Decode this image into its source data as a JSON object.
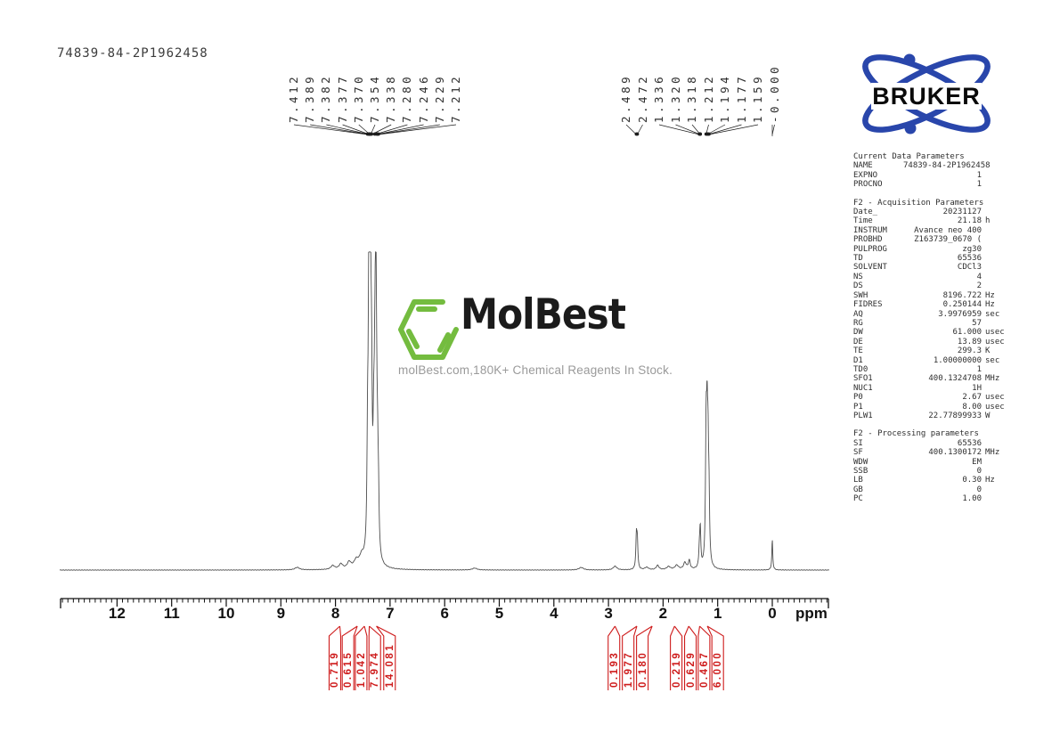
{
  "sample_id": "74839-84-2P1962458",
  "bruker_logo": {
    "text": "BRUKER",
    "ellipse_color": "#2946ab",
    "text_color": "#0a0a0a"
  },
  "watermark": {
    "brand": "MolBest",
    "tagline": "molBest.com,180K+ Chemical Reagents In Stock.",
    "hexagon_color": "#74bc3f",
    "brand_color": "#1b1b1b",
    "tagline_color": "#9a9a9a"
  },
  "axis": {
    "unit": "ppm",
    "ticks": [
      "12",
      "11",
      "10",
      "9",
      "8",
      "7",
      "6",
      "5",
      "4",
      "3",
      "2",
      "1",
      "0"
    ]
  },
  "peak_labels": {
    "color": "#2e2e2e",
    "groups": [
      {
        "items": [
          "7.412",
          "7.389",
          "7.382",
          "7.377",
          "7.370",
          "7.354",
          "7.338",
          "7.280",
          "7.246",
          "7.229",
          "7.212"
        ]
      },
      {
        "items": [
          "2.489",
          "2.472",
          "1.336",
          "1.320",
          "1.318",
          "1.212",
          "1.194",
          "1.177",
          "1.159",
          "-0.000"
        ]
      }
    ]
  },
  "integrals": {
    "color": "#ce1b1b",
    "items": [
      {
        "value": "0.719",
        "peak_ppm": 7.92,
        "label_ppm": 8.01
      },
      {
        "value": "0.615",
        "peak_ppm": 7.6,
        "label_ppm": 7.77
      },
      {
        "value": "1.042",
        "peak_ppm": 7.47,
        "label_ppm": 7.53
      },
      {
        "value": "7.974",
        "peak_ppm": 7.38,
        "label_ppm": 7.28
      },
      {
        "value": "14.081",
        "peak_ppm": 7.25,
        "label_ppm": 7.01
      },
      {
        "value": "0.193",
        "peak_ppm": 2.88,
        "label_ppm": 2.9
      },
      {
        "value": "1.977",
        "peak_ppm": 2.48,
        "label_ppm": 2.64
      },
      {
        "value": "0.180",
        "peak_ppm": 2.2,
        "label_ppm": 2.38
      },
      {
        "value": "0.219",
        "peak_ppm": 1.79,
        "label_ppm": 1.76
      },
      {
        "value": "0.629",
        "peak_ppm": 1.53,
        "label_ppm": 1.5
      },
      {
        "value": "0.467",
        "peak_ppm": 1.33,
        "label_ppm": 1.25
      },
      {
        "value": "6.000",
        "peak_ppm": 1.19,
        "label_ppm": 1.0
      }
    ]
  },
  "parameters": {
    "sections": [
      {
        "header": "Current Data Parameters",
        "rows": [
          [
            "NAME",
            "74839-84-2P1962458",
            ""
          ],
          [
            "EXPNO",
            "1",
            ""
          ],
          [
            "PROCNO",
            "1",
            ""
          ]
        ]
      },
      {
        "header": "F2 - Acquisition Parameters",
        "rows": [
          [
            "Date_",
            "20231127",
            ""
          ],
          [
            "Time",
            "21.18",
            "h"
          ],
          [
            "INSTRUM",
            "Avance neo 400",
            ""
          ],
          [
            "PROBHD",
            "Z163739_0670 (",
            ""
          ],
          [
            "PULPROG",
            "zg30",
            ""
          ],
          [
            "TD",
            "65536",
            ""
          ],
          [
            "SOLVENT",
            "CDCl3",
            ""
          ],
          [
            "NS",
            "4",
            ""
          ],
          [
            "DS",
            "2",
            ""
          ],
          [
            "SWH",
            "8196.722",
            "Hz"
          ],
          [
            "FIDRES",
            "0.250144",
            "Hz"
          ],
          [
            "AQ",
            "3.9976959",
            "sec"
          ],
          [
            "RG",
            "57",
            ""
          ],
          [
            "DW",
            "61.000",
            "usec"
          ],
          [
            "DE",
            "13.89",
            "usec"
          ],
          [
            "TE",
            "299.3",
            "K"
          ],
          [
            "D1",
            "1.00000000",
            "sec"
          ],
          [
            "TD0",
            "1",
            ""
          ],
          [
            "SFO1",
            "400.1324708",
            "MHz"
          ],
          [
            "NUC1",
            "1H",
            ""
          ],
          [
            "P0",
            "2.67",
            "usec"
          ],
          [
            "P1",
            "8.00",
            "usec"
          ],
          [
            "PLW1",
            "22.77899933",
            "W"
          ]
        ]
      },
      {
        "header": "F2 - Processing parameters",
        "rows": [
          [
            "SI",
            "65536",
            ""
          ],
          [
            "SF",
            "400.1300172",
            "MHz"
          ],
          [
            "WDW",
            "EM",
            ""
          ],
          [
            "SSB",
            "0",
            ""
          ],
          [
            "LB",
            "0.30",
            "Hz"
          ],
          [
            "GB",
            "0",
            ""
          ],
          [
            "PC",
            "1.00",
            ""
          ]
        ]
      }
    ]
  },
  "chart_data": {
    "type": "line",
    "title": "1H NMR spectrum 74839-84-2P1962458 (400 MHz, CDCl3)",
    "xlabel": "ppm",
    "x_range": [
      13.05,
      -1.05
    ],
    "grid": false,
    "trace_color": "#4d4d4d",
    "peak_picks_ppm": [
      7.412,
      7.389,
      7.382,
      7.377,
      7.37,
      7.354,
      7.338,
      7.28,
      7.246,
      7.229,
      7.212,
      2.489,
      2.472,
      1.336,
      1.32,
      1.318,
      1.212,
      1.194,
      1.177,
      1.159,
      -0.0
    ],
    "integral_values": [
      0.719,
      0.615,
      1.042,
      7.974,
      14.081,
      0.193,
      1.977,
      0.18,
      0.219,
      0.629,
      0.467,
      6.0
    ],
    "peaks": [
      {
        "ppm": 8.7,
        "h": 0.008,
        "w": 0.05
      },
      {
        "ppm": 8.05,
        "h": 0.012,
        "w": 0.04
      },
      {
        "ppm": 7.9,
        "h": 0.016,
        "w": 0.04
      },
      {
        "ppm": 7.75,
        "h": 0.02,
        "w": 0.04
      },
      {
        "ppm": 7.62,
        "h": 0.022,
        "w": 0.05
      },
      {
        "ppm": 7.52,
        "h": 0.03,
        "w": 0.05
      },
      {
        "ppm": 7.412,
        "h": 0.3,
        "w": 0.013
      },
      {
        "ppm": 7.389,
        "h": 0.45,
        "w": 0.013
      },
      {
        "ppm": 7.382,
        "h": 0.42,
        "w": 0.012
      },
      {
        "ppm": 7.377,
        "h": 0.38,
        "w": 0.012
      },
      {
        "ppm": 7.37,
        "h": 0.35,
        "w": 0.012
      },
      {
        "ppm": 7.354,
        "h": 0.47,
        "w": 0.013
      },
      {
        "ppm": 7.338,
        "h": 0.4,
        "w": 0.013
      },
      {
        "ppm": 7.3,
        "h": 0.3,
        "w": 0.015
      },
      {
        "ppm": 7.28,
        "h": 0.38,
        "w": 0.013
      },
      {
        "ppm": 7.262,
        "h": 1.0,
        "w": 0.01
      },
      {
        "ppm": 7.246,
        "h": 0.28,
        "w": 0.013
      },
      {
        "ppm": 7.229,
        "h": 0.22,
        "w": 0.013
      },
      {
        "ppm": 7.212,
        "h": 0.15,
        "w": 0.013
      },
      {
        "ppm": 5.45,
        "h": 0.006,
        "w": 0.05
      },
      {
        "ppm": 3.5,
        "h": 0.008,
        "w": 0.05
      },
      {
        "ppm": 2.88,
        "h": 0.012,
        "w": 0.04
      },
      {
        "ppm": 2.489,
        "h": 0.1,
        "w": 0.012
      },
      {
        "ppm": 2.472,
        "h": 0.085,
        "w": 0.012
      },
      {
        "ppm": 2.3,
        "h": 0.008,
        "w": 0.04
      },
      {
        "ppm": 2.1,
        "h": 0.014,
        "w": 0.03
      },
      {
        "ppm": 1.9,
        "h": 0.01,
        "w": 0.04
      },
      {
        "ppm": 1.75,
        "h": 0.014,
        "w": 0.04
      },
      {
        "ppm": 1.6,
        "h": 0.022,
        "w": 0.03
      },
      {
        "ppm": 1.52,
        "h": 0.028,
        "w": 0.02
      },
      {
        "ppm": 1.336,
        "h": 0.05,
        "w": 0.012
      },
      {
        "ppm": 1.32,
        "h": 0.062,
        "w": 0.012
      },
      {
        "ppm": 1.318,
        "h": 0.058,
        "w": 0.012
      },
      {
        "ppm": 1.212,
        "h": 0.38,
        "w": 0.013
      },
      {
        "ppm": 1.194,
        "h": 0.36,
        "w": 0.013
      },
      {
        "ppm": 1.177,
        "h": 0.28,
        "w": 0.012
      },
      {
        "ppm": 1.159,
        "h": 0.18,
        "w": 0.012
      },
      {
        "ppm": 0.0,
        "h": 0.095,
        "w": 0.01
      }
    ]
  }
}
